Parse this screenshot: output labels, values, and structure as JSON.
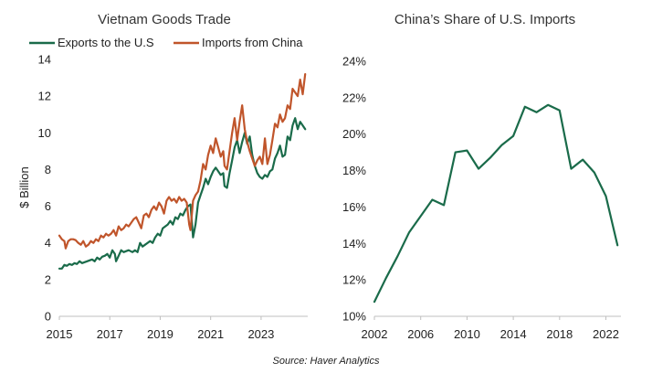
{
  "colors": {
    "exports": "#1a6b4a",
    "imports": "#c0552b",
    "share": "#1a6b4a",
    "axis": "#bfbfbf"
  },
  "source": "Source: Haver Analytics",
  "chart_data": [
    {
      "type": "line",
      "title": "Vietnam Goods Trade",
      "ylabel": "$ Billion",
      "xlabel": "",
      "xlim": [
        2015,
        2024.85
      ],
      "ylim": [
        0,
        14
      ],
      "x_ticks": [
        2015,
        2017,
        2019,
        2021,
        2023
      ],
      "x_tick_labels": [
        "2015",
        "2017",
        "2019",
        "2021",
        "2023"
      ],
      "y_ticks": [
        0,
        2,
        4,
        6,
        8,
        10,
        12,
        14
      ],
      "y_tick_labels": [
        "0",
        "2",
        "4",
        "6",
        "8",
        "10",
        "12",
        "14"
      ],
      "legend_position": "top",
      "series": [
        {
          "name": "Exports to the U.S",
          "points": [
            [
              2015.0,
              2.6
            ],
            [
              2015.1,
              2.6
            ],
            [
              2015.2,
              2.8
            ],
            [
              2015.3,
              2.75
            ],
            [
              2015.4,
              2.85
            ],
            [
              2015.5,
              2.8
            ],
            [
              2015.6,
              2.9
            ],
            [
              2015.7,
              2.85
            ],
            [
              2015.8,
              3.0
            ],
            [
              2015.9,
              2.9
            ],
            [
              2016.0,
              2.95
            ],
            [
              2016.1,
              3.0
            ],
            [
              2016.2,
              3.05
            ],
            [
              2016.3,
              3.1
            ],
            [
              2016.4,
              3.0
            ],
            [
              2016.5,
              3.2
            ],
            [
              2016.6,
              3.1
            ],
            [
              2016.7,
              3.25
            ],
            [
              2016.8,
              3.3
            ],
            [
              2016.9,
              3.4
            ],
            [
              2017.0,
              3.2
            ],
            [
              2017.1,
              3.6
            ],
            [
              2017.2,
              3.4
            ],
            [
              2017.25,
              3.0
            ],
            [
              2017.35,
              3.3
            ],
            [
              2017.45,
              3.6
            ],
            [
              2017.55,
              3.5
            ],
            [
              2017.65,
              3.55
            ],
            [
              2017.75,
              3.6
            ],
            [
              2017.9,
              3.5
            ],
            [
              2018.0,
              3.6
            ],
            [
              2018.1,
              3.5
            ],
            [
              2018.2,
              4.0
            ],
            [
              2018.3,
              3.8
            ],
            [
              2018.4,
              3.9
            ],
            [
              2018.5,
              4.0
            ],
            [
              2018.6,
              4.1
            ],
            [
              2018.7,
              4.0
            ],
            [
              2018.8,
              4.3
            ],
            [
              2018.9,
              4.5
            ],
            [
              2019.0,
              4.4
            ],
            [
              2019.1,
              4.8
            ],
            [
              2019.2,
              4.9
            ],
            [
              2019.3,
              5.0
            ],
            [
              2019.4,
              5.2
            ],
            [
              2019.5,
              5.0
            ],
            [
              2019.6,
              5.4
            ],
            [
              2019.7,
              5.3
            ],
            [
              2019.8,
              5.6
            ],
            [
              2019.9,
              5.5
            ],
            [
              2020.0,
              5.8
            ],
            [
              2020.1,
              6.0
            ],
            [
              2020.2,
              6.1
            ],
            [
              2020.25,
              5.2
            ],
            [
              2020.3,
              4.3
            ],
            [
              2020.4,
              5.0
            ],
            [
              2020.5,
              6.2
            ],
            [
              2020.6,
              6.6
            ],
            [
              2020.7,
              7.0
            ],
            [
              2020.8,
              7.5
            ],
            [
              2020.9,
              7.2
            ],
            [
              2021.0,
              7.6
            ],
            [
              2021.1,
              7.9
            ],
            [
              2021.2,
              8.1
            ],
            [
              2021.3,
              7.9
            ],
            [
              2021.4,
              7.7
            ],
            [
              2021.5,
              7.8
            ],
            [
              2021.55,
              7.1
            ],
            [
              2021.65,
              7.0
            ],
            [
              2021.75,
              7.8
            ],
            [
              2021.85,
              8.5
            ],
            [
              2021.95,
              9.2
            ],
            [
              2022.05,
              9.6
            ],
            [
              2022.15,
              8.9
            ],
            [
              2022.25,
              9.5
            ],
            [
              2022.35,
              10.0
            ],
            [
              2022.45,
              9.4
            ],
            [
              2022.55,
              9.8
            ],
            [
              2022.65,
              8.8
            ],
            [
              2022.75,
              8.2
            ],
            [
              2022.85,
              7.8
            ],
            [
              2022.95,
              7.6
            ],
            [
              2023.05,
              7.5
            ],
            [
              2023.15,
              7.7
            ],
            [
              2023.25,
              7.6
            ],
            [
              2023.35,
              7.9
            ],
            [
              2023.45,
              8.0
            ],
            [
              2023.55,
              8.6
            ],
            [
              2023.65,
              8.9
            ],
            [
              2023.75,
              9.3
            ],
            [
              2023.85,
              8.7
            ],
            [
              2023.95,
              8.8
            ],
            [
              2024.05,
              9.8
            ],
            [
              2024.15,
              9.6
            ],
            [
              2024.25,
              10.4
            ],
            [
              2024.35,
              10.8
            ],
            [
              2024.45,
              10.2
            ],
            [
              2024.55,
              10.6
            ],
            [
              2024.65,
              10.4
            ],
            [
              2024.75,
              10.2
            ]
          ]
        },
        {
          "name": "Imports from China",
          "points": [
            [
              2015.0,
              4.4
            ],
            [
              2015.1,
              4.2
            ],
            [
              2015.2,
              4.1
            ],
            [
              2015.25,
              3.7
            ],
            [
              2015.35,
              4.1
            ],
            [
              2015.45,
              4.2
            ],
            [
              2015.55,
              4.2
            ],
            [
              2015.65,
              4.15
            ],
            [
              2015.75,
              4.0
            ],
            [
              2015.85,
              3.9
            ],
            [
              2015.95,
              4.1
            ],
            [
              2016.05,
              3.8
            ],
            [
              2016.15,
              3.9
            ],
            [
              2016.25,
              4.1
            ],
            [
              2016.35,
              4.0
            ],
            [
              2016.45,
              4.2
            ],
            [
              2016.55,
              4.1
            ],
            [
              2016.65,
              4.4
            ],
            [
              2016.75,
              4.3
            ],
            [
              2016.85,
              4.5
            ],
            [
              2016.95,
              4.4
            ],
            [
              2017.05,
              4.5
            ],
            [
              2017.15,
              4.7
            ],
            [
              2017.25,
              4.4
            ],
            [
              2017.35,
              4.9
            ],
            [
              2017.45,
              4.7
            ],
            [
              2017.55,
              4.8
            ],
            [
              2017.65,
              5.0
            ],
            [
              2017.75,
              4.9
            ],
            [
              2017.85,
              5.1
            ],
            [
              2017.95,
              5.3
            ],
            [
              2018.05,
              5.4
            ],
            [
              2018.15,
              5.1
            ],
            [
              2018.25,
              4.8
            ],
            [
              2018.35,
              5.5
            ],
            [
              2018.45,
              5.6
            ],
            [
              2018.55,
              5.4
            ],
            [
              2018.65,
              5.8
            ],
            [
              2018.75,
              6.0
            ],
            [
              2018.85,
              5.8
            ],
            [
              2018.95,
              6.2
            ],
            [
              2019.05,
              6.0
            ],
            [
              2019.15,
              5.6
            ],
            [
              2019.25,
              6.3
            ],
            [
              2019.35,
              6.5
            ],
            [
              2019.45,
              6.3
            ],
            [
              2019.55,
              6.4
            ],
            [
              2019.65,
              6.2
            ],
            [
              2019.75,
              6.5
            ],
            [
              2019.85,
              6.3
            ],
            [
              2019.95,
              6.4
            ],
            [
              2020.05,
              6.2
            ],
            [
              2020.15,
              5.0
            ],
            [
              2020.2,
              4.7
            ],
            [
              2020.3,
              6.3
            ],
            [
              2020.4,
              6.6
            ],
            [
              2020.5,
              6.8
            ],
            [
              2020.6,
              7.4
            ],
            [
              2020.7,
              8.3
            ],
            [
              2020.8,
              8.0
            ],
            [
              2020.9,
              8.8
            ],
            [
              2021.0,
              9.3
            ],
            [
              2021.1,
              8.9
            ],
            [
              2021.2,
              9.7
            ],
            [
              2021.3,
              9.2
            ],
            [
              2021.4,
              8.7
            ],
            [
              2021.5,
              9.0
            ],
            [
              2021.55,
              8.2
            ],
            [
              2021.65,
              8.0
            ],
            [
              2021.75,
              9.0
            ],
            [
              2021.85,
              10.0
            ],
            [
              2021.95,
              10.8
            ],
            [
              2022.05,
              9.6
            ],
            [
              2022.15,
              10.6
            ],
            [
              2022.25,
              11.5
            ],
            [
              2022.35,
              10.2
            ],
            [
              2022.45,
              9.5
            ],
            [
              2022.55,
              9.0
            ],
            [
              2022.65,
              8.6
            ],
            [
              2022.75,
              8.2
            ],
            [
              2022.85,
              8.5
            ],
            [
              2022.95,
              8.7
            ],
            [
              2023.05,
              8.3
            ],
            [
              2023.15,
              9.7
            ],
            [
              2023.25,
              8.3
            ],
            [
              2023.35,
              8.8
            ],
            [
              2023.45,
              9.6
            ],
            [
              2023.55,
              10.5
            ],
            [
              2023.65,
              10.3
            ],
            [
              2023.75,
              11.0
            ],
            [
              2023.85,
              10.6
            ],
            [
              2023.95,
              10.8
            ],
            [
              2024.05,
              11.5
            ],
            [
              2024.15,
              11.3
            ],
            [
              2024.25,
              12.4
            ],
            [
              2024.35,
              12.2
            ],
            [
              2024.45,
              12.0
            ],
            [
              2024.55,
              12.9
            ],
            [
              2024.65,
              12.1
            ],
            [
              2024.75,
              13.2
            ]
          ]
        }
      ]
    },
    {
      "type": "line",
      "title": "China’s Share of U.S. Imports",
      "xlabel": "",
      "ylabel": "",
      "xlim": [
        2002,
        2023.3
      ],
      "ylim": [
        10,
        24
      ],
      "x_ticks": [
        2002,
        2006,
        2010,
        2014,
        2018,
        2022
      ],
      "x_tick_labels": [
        "2002",
        "2006",
        "2010",
        "2014",
        "2018",
        "2022"
      ],
      "y_ticks": [
        10,
        12,
        14,
        16,
        18,
        20,
        22,
        24
      ],
      "y_tick_labels": [
        "10%",
        "12%",
        "14%",
        "16%",
        "18%",
        "20%",
        "22%",
        "24%"
      ],
      "series": [
        {
          "name": "China’s Share of U.S. Imports",
          "points": [
            [
              2002,
              10.8
            ],
            [
              2003,
              12.1
            ],
            [
              2004,
              13.3
            ],
            [
              2005,
              14.6
            ],
            [
              2006,
              15.5
            ],
            [
              2007,
              16.4
            ],
            [
              2008,
              16.1
            ],
            [
              2009,
              19.0
            ],
            [
              2010,
              19.1
            ],
            [
              2011,
              18.1
            ],
            [
              2012,
              18.7
            ],
            [
              2013,
              19.4
            ],
            [
              2014,
              19.9
            ],
            [
              2015,
              21.5
            ],
            [
              2016,
              21.2
            ],
            [
              2017,
              21.6
            ],
            [
              2018,
              21.3
            ],
            [
              2019,
              18.1
            ],
            [
              2020,
              18.6
            ],
            [
              2021,
              17.9
            ],
            [
              2022,
              16.6
            ],
            [
              2023,
              13.9
            ]
          ]
        }
      ]
    }
  ]
}
